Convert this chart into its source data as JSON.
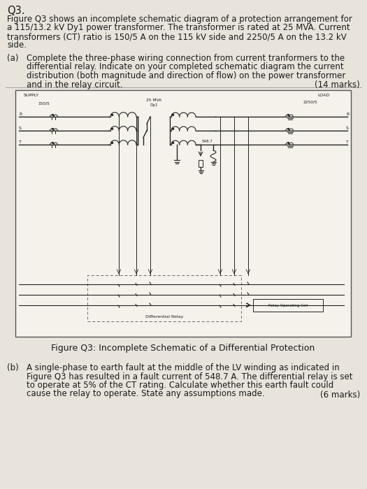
{
  "bg_color": "#e8e4dc",
  "page_color": "#f0ede6",
  "text_color": "#1a1a1a",
  "line_color": "#222222",
  "title_text": "Q3.",
  "marks_a": "(14 marks)",
  "marks_b": "(6 marks)",
  "fig_caption": "Figure Q3: Incomplete Schematic of a Differential Protection",
  "fs_title": 10.5,
  "fs_body": 8.5,
  "fs_small": 5.0,
  "fs_caption": 9.0
}
